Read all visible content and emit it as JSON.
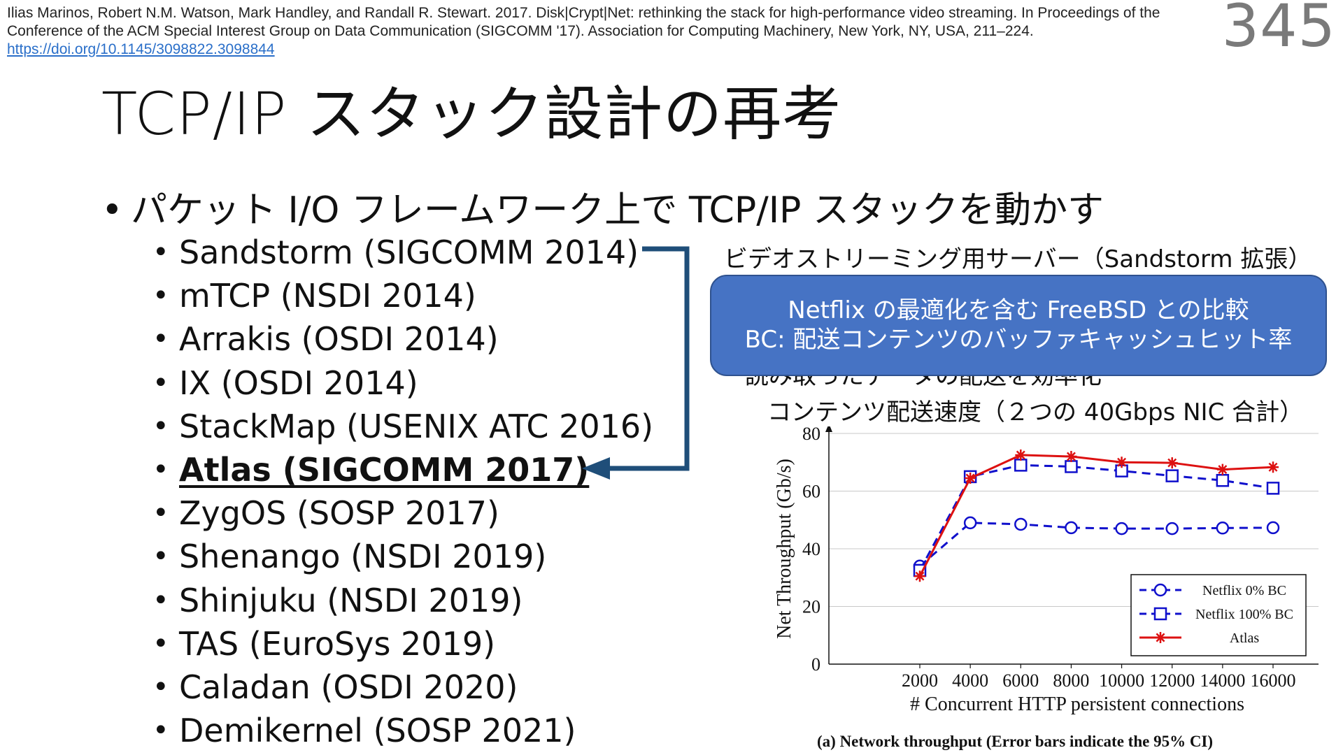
{
  "citation": {
    "text": "Ilias Marinos, Robert N.M. Watson, Mark Handley, and Randall R. Stewart. 2017. Disk|Crypt|Net: rethinking the stack for high-performance video streaming. In Proceedings of the Conference of the ACM Special Interest Group on Data Communication (SIGCOMM '17). Association for Computing Machinery, New York, NY, USA, 211–224. ",
    "doi": "https://doi.org/10.1145/3098822.3098844"
  },
  "page_number": "345",
  "title": "TCP/IP スタック設計の再考",
  "main_bullet": "パケット I/O フレームワーク上で TCP/IP スタックを動かす",
  "systems": [
    "Sandstorm (SIGCOMM 2014)",
    "mTCP (NSDI 2014)",
    "Arrakis (OSDI 2014)",
    "IX (OSDI 2014)",
    "StackMap (USENIX ATC 2016)",
    "Atlas (SIGCOMM 2017)",
    "ZygOS (SOSP 2017)",
    "Shenango (NSDI 2019)",
    "Shinjuku (NSDI 2019)",
    "TAS (EuroSys 2019)",
    "Caladan (OSDI 2020)",
    "Demikernel (SOSP 2021)"
  ],
  "highlighted_index": 5,
  "right_notes": {
    "server_note": "ビデオストリーミング用サーバー（Sandstorm 拡張）",
    "partial_note": "読み取ったデータの配送を効率化",
    "chart_heading": "コンテンツ配送速度（２つの 40Gbps NIC 合計）"
  },
  "callout": {
    "line1": "Netflix の最適化を含む FreeBSD との比較",
    "line2": "BC: 配送コンテンツのバッファキャッシュヒット率"
  },
  "figure_caption": "(a) Network throughput (Error bars indicate the 95% CI)",
  "colors": {
    "arrow": "#1f4e79",
    "callout_bg": "#4673c4",
    "netflix": "#1010cc",
    "atlas": "#dd1111"
  },
  "chart_data": {
    "type": "line",
    "xlabel": "# Concurrent HTTP persistent connections",
    "ylabel": "Net Throughput (Gb/s)",
    "x": [
      2000,
      4000,
      6000,
      8000,
      10000,
      12000,
      14000,
      16000
    ],
    "xticks": [
      "2000",
      "4000",
      "6000",
      "8000",
      "10000",
      "12000",
      "14000",
      "16000"
    ],
    "yticks": [
      "0",
      "20",
      "40",
      "60",
      "80"
    ],
    "ylim": [
      0,
      80
    ],
    "grid": "horizontal",
    "legend_position": "bottom-right",
    "series": [
      {
        "name": "Netflix 0% BC",
        "style": "dashed-circle",
        "values": [
          34,
          49,
          48.5,
          47.3,
          47,
          47,
          47.2,
          47.3
        ]
      },
      {
        "name": "Netflix 100% BC",
        "style": "dashed-square",
        "values": [
          32.5,
          65,
          69,
          68.5,
          67,
          65.3,
          63.7,
          61
        ]
      },
      {
        "name": "Atlas",
        "style": "solid-star",
        "values": [
          30.5,
          64.5,
          72.5,
          72,
          70,
          69.8,
          67.5,
          68.3
        ]
      }
    ]
  }
}
